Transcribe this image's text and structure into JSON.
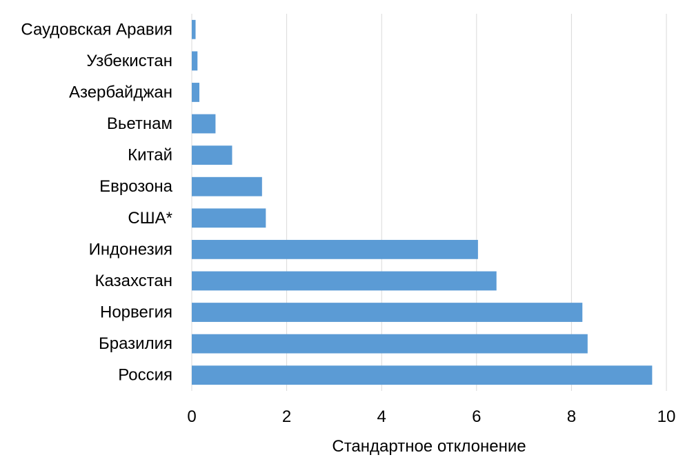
{
  "chart_data": {
    "type": "bar",
    "orientation": "horizontal",
    "title": "",
    "xlabel": "Стандартное отклонение",
    "ylabel": "",
    "xlim": [
      0,
      10
    ],
    "x_ticks": [
      "0",
      "2",
      "4",
      "6",
      "8",
      "10"
    ],
    "grid": true,
    "legend": "none",
    "categories": [
      "Саудовская Аравия",
      "Узбекистан",
      "Азербайджан",
      "Вьетнам",
      "Китай",
      "Еврозона",
      "США*",
      "Индонезия",
      "Казахстан",
      "Норвегия",
      "Бразилия",
      "Россия"
    ],
    "values": [
      0.08,
      0.12,
      0.16,
      0.5,
      0.85,
      1.48,
      1.56,
      6.03,
      6.42,
      8.23,
      8.34,
      9.7
    ],
    "colors": {
      "bar": "#5b9bd5",
      "grid": "#d9d9d9"
    }
  }
}
